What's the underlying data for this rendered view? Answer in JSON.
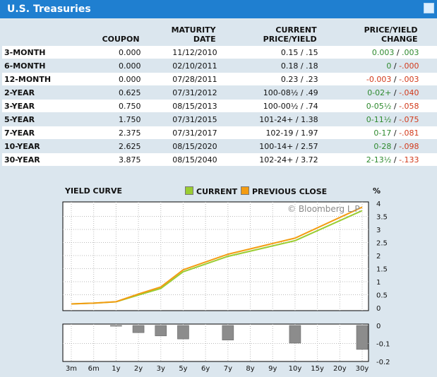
{
  "header": {
    "title": "U.S. Treasuries"
  },
  "table": {
    "columns": {
      "coupon": "COUPON",
      "maturity_1": "MATURITY",
      "maturity_2": "DATE",
      "price_1": "CURRENT",
      "price_2": "PRICE/YIELD",
      "change_1": "PRICE/YIELD",
      "change_2": "CHANGE"
    },
    "rows": [
      {
        "label": "3-MONTH",
        "coupon": "0.000",
        "maturity": "11/12/2010",
        "price": "0.15 / .15",
        "chg_price": "0.003",
        "chg_yield": ".003",
        "price_color": "green",
        "yield_color": "green"
      },
      {
        "label": "6-MONTH",
        "coupon": "0.000",
        "maturity": "02/10/2011",
        "price": "0.18 / .18",
        "chg_price": "0",
        "chg_yield": "-.000",
        "price_color": "green",
        "yield_color": "red"
      },
      {
        "label": "12-MONTH",
        "coupon": "0.000",
        "maturity": "07/28/2011",
        "price": "0.23 / .23",
        "chg_price": "-0.003",
        "chg_yield": "-.003",
        "price_color": "red",
        "yield_color": "red"
      },
      {
        "label": "2-YEAR",
        "coupon": "0.625",
        "maturity": "07/31/2012",
        "price": "100-08½ / .49",
        "chg_price": "0-02+",
        "chg_yield": "-.040",
        "price_color": "green",
        "yield_color": "red"
      },
      {
        "label": "3-YEAR",
        "coupon": "0.750",
        "maturity": "08/15/2013",
        "price": "100-00½ / .74",
        "chg_price": "0-05½",
        "chg_yield": "-.058",
        "price_color": "green",
        "yield_color": "red"
      },
      {
        "label": "5-YEAR",
        "coupon": "1.750",
        "maturity": "07/31/2015",
        "price": "101-24+ / 1.38",
        "chg_price": "0-11½",
        "chg_yield": "-.075",
        "price_color": "green",
        "yield_color": "red"
      },
      {
        "label": "7-YEAR",
        "coupon": "2.375",
        "maturity": "07/31/2017",
        "price": "102-19 / 1.97",
        "chg_price": "0-17",
        "chg_yield": "-.081",
        "price_color": "green",
        "yield_color": "red"
      },
      {
        "label": "10-YEAR",
        "coupon": "2.625",
        "maturity": "08/15/2020",
        "price": "100-14+ / 2.57",
        "chg_price": "0-28",
        "chg_yield": "-.098",
        "price_color": "green",
        "yield_color": "red"
      },
      {
        "label": "30-YEAR",
        "coupon": "3.875",
        "maturity": "08/15/2040",
        "price": "102-24+ / 3.72",
        "chg_price": "2-13½",
        "chg_yield": "-.133",
        "price_color": "green",
        "yield_color": "red"
      }
    ]
  },
  "chart": {
    "title": "YIELD CURVE",
    "legend_current": "CURRENT",
    "legend_previous": "PREVIOUS CLOSE",
    "unit": "%",
    "watermark": "© Bloomberg L.P.",
    "colors": {
      "current": "#9acd32",
      "previous": "#f39c12",
      "bars": "#8c8c8c"
    }
  },
  "chart_data": {
    "type": "line",
    "categories": [
      "3m",
      "6m",
      "1y",
      "2y",
      "3y",
      "5y",
      "7y",
      "10y",
      "30y"
    ],
    "series": [
      {
        "name": "CURRENT",
        "values": [
          0.15,
          0.18,
          0.23,
          0.49,
          0.74,
          1.38,
          1.97,
          2.57,
          3.72
        ]
      },
      {
        "name": "PREVIOUS CLOSE",
        "values": [
          0.147,
          0.18,
          0.233,
          0.53,
          0.798,
          1.455,
          2.051,
          2.668,
          3.853
        ]
      }
    ],
    "change_bars": {
      "values": [
        0.003,
        0.0,
        -0.003,
        -0.04,
        -0.058,
        -0.075,
        -0.081,
        -0.098,
        -0.133
      ],
      "ylim": [
        -0.2,
        0
      ]
    },
    "x_ticks": [
      "3m",
      "6m",
      "1y",
      "2y",
      "3y",
      "5y",
      "6y",
      "7y",
      "8y",
      "9y",
      "10y",
      "15y",
      "20y",
      "30y"
    ],
    "ylim": [
      0,
      4
    ],
    "y_ticks": [
      0,
      0.5,
      1,
      1.5,
      2,
      2.5,
      3,
      3.5,
      4
    ],
    "bar_ticks": [
      0,
      -0.1,
      -0.2
    ]
  }
}
